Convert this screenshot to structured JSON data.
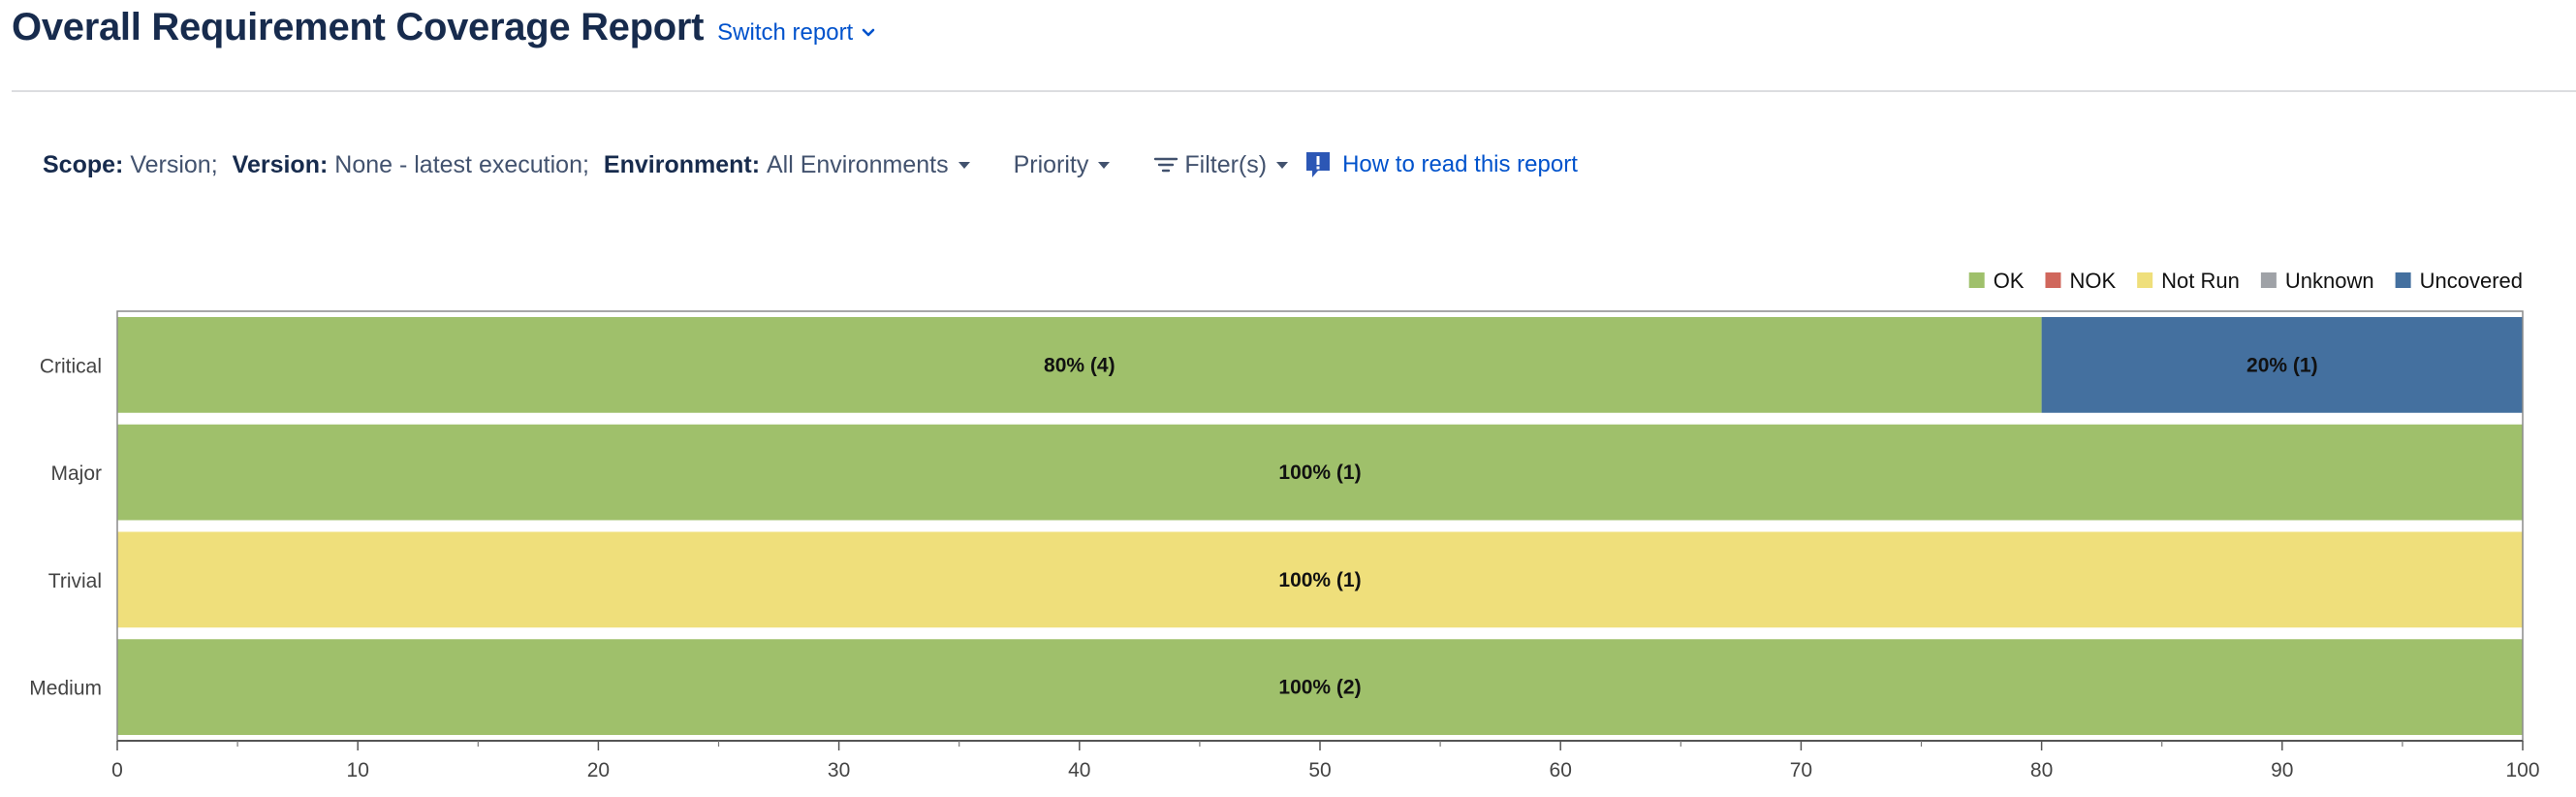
{
  "header": {
    "title": "Overall Requirement Coverage Report",
    "switch_label": "Switch report"
  },
  "filters": {
    "scope_label": "Scope:",
    "scope_value": "Version;",
    "version_label": "Version:",
    "version_value": "None - latest execution;",
    "environment_label": "Environment:",
    "environment_value": "All Environments",
    "priority_label": "Priority",
    "filters_label": "Filter(s)",
    "how_to_read": "How to read this report"
  },
  "icons": {
    "switch": "chevron-down-icon",
    "filter": "filter-icon",
    "help": "help-icon",
    "dropdown": "caret-down-icon"
  },
  "colors": {
    "OK": "#9fc06b",
    "NOK": "#d0675c",
    "Not Run": "#efdf7b",
    "Unknown": "#9fa2a7",
    "Uncovered": "#44709f",
    "link": "#0052cc"
  },
  "chart_data": {
    "type": "bar",
    "orientation": "horizontal",
    "stacked": true,
    "categories": [
      "Critical",
      "Major",
      "Trivial",
      "Medium"
    ],
    "legend": [
      "OK",
      "NOK",
      "Not Run",
      "Unknown",
      "Uncovered"
    ],
    "legend_position": "top-right",
    "xlim": [
      0,
      100
    ],
    "xticks": [
      0,
      10,
      20,
      30,
      40,
      50,
      60,
      70,
      80,
      90,
      100
    ],
    "series": [
      {
        "name": "OK",
        "values": [
          80,
          100,
          0,
          100
        ],
        "labels": [
          "80% (4)",
          "100% (1)",
          "",
          "100% (2)"
        ]
      },
      {
        "name": "NOK",
        "values": [
          0,
          0,
          0,
          0
        ],
        "labels": [
          "",
          "",
          "",
          ""
        ]
      },
      {
        "name": "Not Run",
        "values": [
          0,
          0,
          100,
          0
        ],
        "labels": [
          "",
          "",
          "100% (1)",
          ""
        ]
      },
      {
        "name": "Unknown",
        "values": [
          0,
          0,
          0,
          0
        ],
        "labels": [
          "",
          "",
          "",
          ""
        ]
      },
      {
        "name": "Uncovered",
        "values": [
          20,
          0,
          0,
          0
        ],
        "labels": [
          "20% (1)",
          "",
          "",
          ""
        ]
      }
    ]
  }
}
